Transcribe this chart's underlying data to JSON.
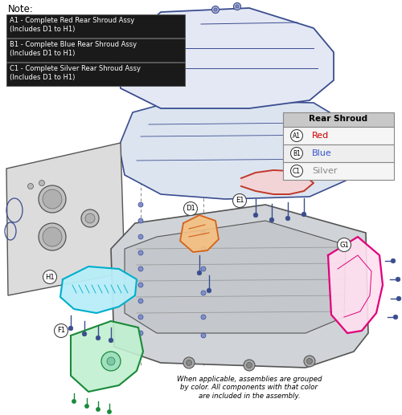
{
  "note_label": "Note:",
  "note_items": [
    "A1 - Complete Red Rear Shroud Assy\n(Includes D1 to H1)",
    "B1 - Complete Blue Rear Shroud Assy\n(Includes D1 to H1)",
    "C1 - Complete Silver Rear Shroud Assy\n(Includes D1 to H1)"
  ],
  "legend_title": "Rear Shroud",
  "legend_items": [
    {
      "label": "A1",
      "color_name": "Red",
      "color": "#cc0000"
    },
    {
      "label": "B1",
      "color_name": "Blue",
      "color": "#3355cc"
    },
    {
      "label": "C1",
      "color_name": "Silver",
      "color": "#888888"
    }
  ],
  "footer_text": "When applicable, assemblies are grouped\nby color. All components with that color\nare included in the assembly.",
  "bg_color": "#ffffff",
  "note_bg": "#1a1a1a",
  "note_text_color": "#ffffff",
  "note_border_color": "#555555",
  "blue": "#3a4d8f",
  "red": "#c0392b",
  "orange": "#d4621a",
  "cyan": "#00aecc",
  "pink": "#e0007a",
  "green": "#1a8a3a",
  "dark_gray": "#444444",
  "mid_gray": "#888888",
  "light_gray": "#cccccc",
  "panel_fill": "#dce0e8",
  "shroud_fill": "#e4e8f4",
  "frame_fill": "#d0d4d8"
}
